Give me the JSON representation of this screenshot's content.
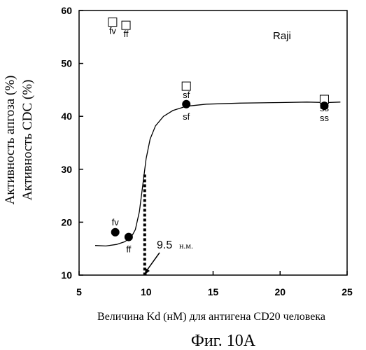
{
  "chart_data": {
    "type": "scatter",
    "title": "",
    "tag": "Raji",
    "caption": "Фиг. 10А",
    "xlabel": "Величина Kd (нМ) для антигена CD20 человека",
    "ylabel_lines": [
      "Активность апгоза (%)",
      "Активность CDC (%)"
    ],
    "xlim": [
      5,
      25
    ],
    "ylim": [
      10,
      60
    ],
    "x_ticks": [
      5,
      10,
      15,
      20,
      25
    ],
    "y_ticks": [
      10,
      20,
      30,
      40,
      50,
      60
    ],
    "grid": false,
    "series": [
      {
        "marker": "open-square",
        "points": [
          {
            "x": 7.5,
            "y": 57.8,
            "label": "fv"
          },
          {
            "x": 8.5,
            "y": 57.2,
            "label": "ff"
          },
          {
            "x": 13.0,
            "y": 45.7,
            "label": "sf"
          },
          {
            "x": 23.3,
            "y": 43.2,
            "label": "ss"
          }
        ]
      },
      {
        "marker": "filled-circle",
        "points": [
          {
            "x": 7.7,
            "y": 18.1,
            "label": "fv"
          },
          {
            "x": 8.7,
            "y": 17.2,
            "label": "ff"
          },
          {
            "x": 13.0,
            "y": 42.3,
            "label": "sf"
          },
          {
            "x": 23.3,
            "y": 42.0,
            "label": "ss"
          }
        ]
      }
    ],
    "fit_curve": [
      [
        6.2,
        15.6
      ],
      [
        7.0,
        15.5
      ],
      [
        7.8,
        15.8
      ],
      [
        8.4,
        16.3
      ],
      [
        8.9,
        17.2
      ],
      [
        9.2,
        18.6
      ],
      [
        9.5,
        22.0
      ],
      [
        9.75,
        27.0
      ],
      [
        10.0,
        32.0
      ],
      [
        10.3,
        35.7
      ],
      [
        10.7,
        38.2
      ],
      [
        11.3,
        40.0
      ],
      [
        12.0,
        41.1
      ],
      [
        13.0,
        41.9
      ],
      [
        14.5,
        42.3
      ],
      [
        17.0,
        42.5
      ],
      [
        20.0,
        42.6
      ],
      [
        22.0,
        42.7
      ],
      [
        23.5,
        42.6
      ],
      [
        24.5,
        42.7
      ]
    ],
    "marker_line": {
      "x": 10,
      "from_y": 10,
      "to_y": 29
    },
    "annotation": {
      "value": "9.5",
      "unit": "н.м.",
      "x": 10
    }
  }
}
